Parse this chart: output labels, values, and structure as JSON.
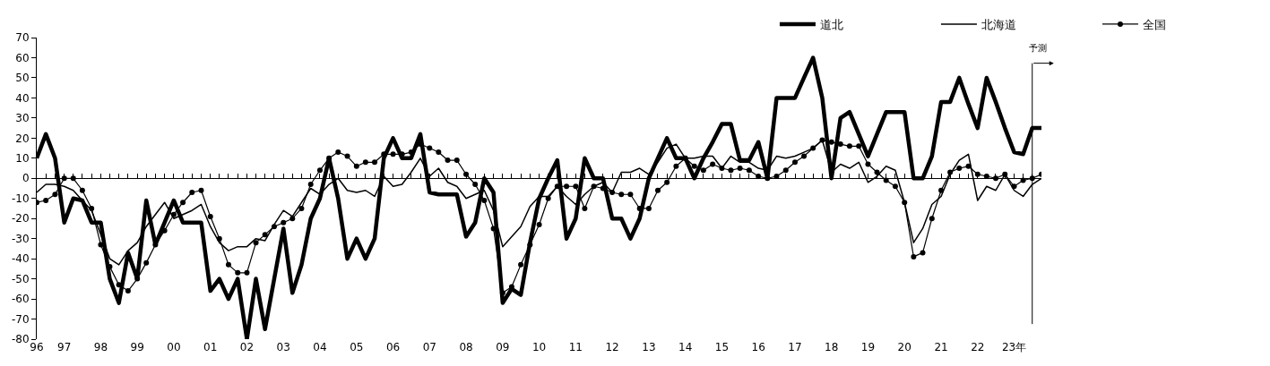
{
  "chart_data": {
    "type": "line",
    "x": [
      "1996-04",
      "1996-07",
      "1996-10",
      "1997-01",
      "1997-04",
      "1997-07",
      "1997-10",
      "1998-01",
      "1998-04",
      "1998-07",
      "1998-10",
      "1999-01",
      "1999-04",
      "1999-07",
      "1999-10",
      "2000-01",
      "2000-04",
      "2000-07",
      "2000-10",
      "2001-01",
      "2001-04",
      "2001-07",
      "2001-10",
      "2002-01",
      "2002-04",
      "2002-07",
      "2002-10",
      "2003-01",
      "2003-04",
      "2003-07",
      "2003-10",
      "2004-01",
      "2004-04",
      "2004-07",
      "2004-10",
      "2005-01",
      "2005-04",
      "2005-07",
      "2005-10",
      "2006-01",
      "2006-04",
      "2006-07",
      "2006-10",
      "2007-01",
      "2007-04",
      "2007-07",
      "2007-10",
      "2008-01",
      "2008-04",
      "2008-07",
      "2008-10",
      "2009-01",
      "2009-04",
      "2009-07",
      "2009-10",
      "2010-01",
      "2010-04",
      "2010-07",
      "2010-10",
      "2011-01",
      "2011-04",
      "2011-07",
      "2011-10",
      "2012-01",
      "2012-04",
      "2012-07",
      "2012-10",
      "2013-01",
      "2013-04",
      "2013-07",
      "2013-10",
      "2014-01",
      "2014-04",
      "2014-07",
      "2014-10",
      "2015-01",
      "2015-04",
      "2015-07",
      "2015-10",
      "2016-01",
      "2016-04",
      "2016-07",
      "2016-10",
      "2017-01",
      "2017-04",
      "2017-07",
      "2017-10",
      "2018-01",
      "2018-04",
      "2018-07",
      "2018-10",
      "2019-01",
      "2019-04",
      "2019-07",
      "2019-10",
      "2020-01",
      "2020-04",
      "2020-07",
      "2020-10",
      "2021-01",
      "2021-04",
      "2021-07",
      "2021-10",
      "2022-01",
      "2022-04",
      "2022-07",
      "2022-10",
      "2023-01",
      "2023-04",
      "2023-07",
      "2023-10"
    ],
    "series": [
      {
        "name": "道北",
        "color": "#000000",
        "marker": "none",
        "values": [
          10,
          22,
          10,
          -22,
          -10,
          -11,
          -22,
          -22,
          -50,
          -62,
          -37,
          -50,
          -11,
          -33,
          -22,
          -11,
          -22,
          -22,
          -22,
          -56,
          -50,
          -60,
          -50,
          -80,
          -50,
          -75,
          -50,
          -25,
          -57,
          -43,
          -20,
          -10,
          10,
          -10,
          -40,
          -30,
          -40,
          -30,
          10,
          20,
          10,
          10,
          22,
          -7,
          -8,
          -8,
          -8,
          -29,
          -22,
          0,
          -7,
          -62,
          -55,
          -58,
          -32,
          -10,
          0,
          9,
          -30,
          -20,
          10,
          0,
          0,
          -20,
          -20,
          -30,
          -20,
          0,
          10,
          20,
          10,
          10,
          0,
          10,
          18,
          27,
          27,
          9,
          9,
          18,
          0,
          40,
          40,
          40,
          50,
          60,
          40,
          0,
          30,
          33,
          22,
          11,
          22,
          33,
          33,
          33,
          0,
          0,
          11,
          38,
          38,
          50,
          37,
          25,
          50,
          38,
          25,
          13,
          12,
          25,
          25
        ]
      },
      {
        "name": "北海道",
        "color": "#000000",
        "marker": "none",
        "values": [
          -7,
          -3,
          -3,
          -4,
          -6,
          -11,
          -16,
          -28,
          -40,
          -43,
          -36,
          -32,
          -24,
          -18,
          -12,
          -20,
          -18,
          -16,
          -13,
          -24,
          -32,
          -36,
          -34,
          -34,
          -30,
          -31,
          -23,
          -16,
          -19,
          -12,
          -5,
          -8,
          -3,
          0,
          -6,
          -7,
          -6,
          -9,
          1,
          -4,
          -3,
          3,
          10,
          1,
          5,
          -2,
          -4,
          -10,
          -8,
          -6,
          -16,
          -34,
          -29,
          -24,
          -14,
          -9,
          -9,
          -4,
          -9,
          -13,
          -8,
          -4,
          -2,
          -7,
          3,
          3,
          5,
          2,
          8,
          15,
          17,
          10,
          10,
          11,
          11,
          5,
          11,
          8,
          8,
          5,
          4,
          11,
          10,
          11,
          13,
          15,
          19,
          3,
          7,
          5,
          8,
          -2,
          1,
          6,
          4,
          -12,
          -32,
          -25,
          -13,
          -9,
          2,
          9,
          12,
          -11,
          -4,
          -6,
          2,
          -6,
          -9,
          -3,
          0
        ]
      },
      {
        "name": "全国",
        "color": "#000000",
        "marker": "circle",
        "values": [
          -12,
          -11,
          -8,
          0,
          0,
          -6,
          -15,
          -33,
          -44,
          -53,
          -56,
          -50,
          -42,
          -33,
          -26,
          -18,
          -12,
          -7,
          -6,
          -19,
          -30,
          -43,
          -47,
          -47,
          -32,
          -28,
          -24,
          -22,
          -20,
          -15,
          -3,
          4,
          10,
          13,
          11,
          6,
          8,
          8,
          12,
          12,
          12,
          13,
          17,
          15,
          13,
          9,
          9,
          2,
          -3,
          -11,
          -25,
          -57,
          -54,
          -43,
          -33,
          -23,
          -10,
          -4,
          -4,
          -4,
          -15,
          -4,
          -5,
          -7,
          -8,
          -8,
          -15,
          -15,
          -6,
          -2,
          6,
          10,
          6,
          4,
          7,
          5,
          4,
          5,
          4,
          1,
          0,
          1,
          4,
          8,
          11,
          15,
          19,
          18,
          17,
          16,
          16,
          7,
          3,
          -1,
          -4,
          -12,
          -39,
          -37,
          -20,
          -6,
          3,
          5,
          6,
          2,
          1,
          0,
          2,
          -4,
          -1,
          0,
          2
        ]
      }
    ],
    "xticks": [
      {
        "value": "1996-04",
        "label": "96"
      },
      {
        "value": "1997-01",
        "label": "97"
      },
      {
        "value": "1998-01",
        "label": "98"
      },
      {
        "value": "1999-01",
        "label": "99"
      },
      {
        "value": "2000-01",
        "label": "00"
      },
      {
        "value": "2001-01",
        "label": "01"
      },
      {
        "value": "2002-01",
        "label": "02"
      },
      {
        "value": "2003-01",
        "label": "03"
      },
      {
        "value": "2004-01",
        "label": "04"
      },
      {
        "value": "2005-01",
        "label": "05"
      },
      {
        "value": "2006-01",
        "label": "06"
      },
      {
        "value": "2007-01",
        "label": "07"
      },
      {
        "value": "2008-01",
        "label": "08"
      },
      {
        "value": "2009-01",
        "label": "09"
      },
      {
        "value": "2010-01",
        "label": "10"
      },
      {
        "value": "2011-01",
        "label": "11"
      },
      {
        "value": "2012-01",
        "label": "12"
      },
      {
        "value": "2013-01",
        "label": "13"
      },
      {
        "value": "2014-01",
        "label": "14"
      },
      {
        "value": "2015-01",
        "label": "15"
      },
      {
        "value": "2016-01",
        "label": "16"
      },
      {
        "value": "2017-01",
        "label": "17"
      },
      {
        "value": "2018-01",
        "label": "18"
      },
      {
        "value": "2019-01",
        "label": "19"
      },
      {
        "value": "2020-01",
        "label": "20"
      },
      {
        "value": "2021-01",
        "label": "21"
      },
      {
        "value": "2022-01",
        "label": "22"
      },
      {
        "value": "2023-01",
        "label": "23年"
      }
    ],
    "xlim": [
      "1996-04",
      "2023-10"
    ],
    "ylim": [
      -80,
      70
    ],
    "yticks": [
      -80,
      -70,
      -60,
      -50,
      -40,
      -30,
      -20,
      -10,
      0,
      10,
      20,
      30,
      40,
      50,
      60,
      70
    ],
    "ref_lines": [
      {
        "axis": "x",
        "value": "2023-07",
        "label": "予測"
      }
    ],
    "legend": "top right"
  }
}
